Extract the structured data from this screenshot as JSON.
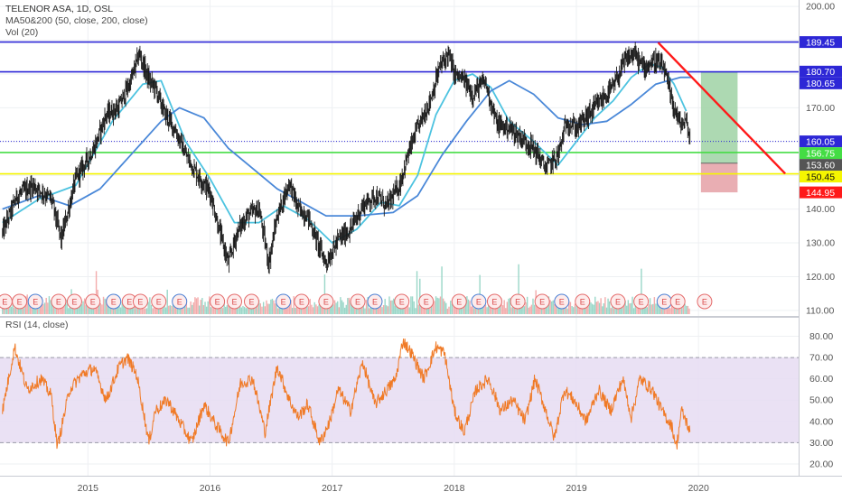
{
  "header": {
    "symbol_line": "TELENOR ASA, 1D, OSL",
    "ma_line": "MA50&200 (50, close, 200, close)",
    "vol_line": "Vol (20)",
    "rsi_line": "RSI (14, close)"
  },
  "chart_data": [
    {
      "type": "line",
      "panel": "price",
      "x_tick_labels": [
        "2015",
        "2016",
        "2017",
        "2018",
        "2019",
        "2020"
      ],
      "x_ticks_years": [
        2015,
        2016,
        2017,
        2018,
        2019,
        2020
      ],
      "x_range_years": [
        2014.28,
        2020.82
      ],
      "y_tick_labels": [
        "110.00",
        "120.00",
        "130.00",
        "140.00",
        "150.00",
        "160.00",
        "170.00",
        "180.00",
        "190.00",
        "200.00"
      ],
      "ylim": [
        109.7,
        201.1
      ],
      "close_approx": [
        [
          2014.3,
          133
        ],
        [
          2014.42,
          144
        ],
        [
          2014.55,
          147
        ],
        [
          2014.7,
          143
        ],
        [
          2014.78,
          131
        ],
        [
          2014.9,
          149
        ],
        [
          2015.05,
          158
        ],
        [
          2015.15,
          168
        ],
        [
          2015.25,
          170
        ],
        [
          2015.35,
          178
        ],
        [
          2015.42,
          186
        ],
        [
          2015.5,
          178
        ],
        [
          2015.55,
          176
        ],
        [
          2015.62,
          169
        ],
        [
          2015.72,
          163
        ],
        [
          2015.8,
          156
        ],
        [
          2015.9,
          150
        ],
        [
          2016.0,
          145
        ],
        [
          2016.08,
          133
        ],
        [
          2016.15,
          124
        ],
        [
          2016.22,
          133
        ],
        [
          2016.3,
          138
        ],
        [
          2016.4,
          140
        ],
        [
          2016.48,
          124
        ],
        [
          2016.55,
          138
        ],
        [
          2016.65,
          148
        ],
        [
          2016.72,
          140
        ],
        [
          2016.8,
          138
        ],
        [
          2016.88,
          130
        ],
        [
          2016.95,
          124
        ],
        [
          2017.05,
          131
        ],
        [
          2017.15,
          134
        ],
        [
          2017.25,
          141
        ],
        [
          2017.35,
          144
        ],
        [
          2017.45,
          141
        ],
        [
          2017.55,
          147
        ],
        [
          2017.62,
          156
        ],
        [
          2017.7,
          164
        ],
        [
          2017.8,
          172
        ],
        [
          2017.88,
          182
        ],
        [
          2017.95,
          186
        ],
        [
          2018.0,
          180
        ],
        [
          2018.08,
          178
        ],
        [
          2018.15,
          174
        ],
        [
          2018.25,
          178
        ],
        [
          2018.35,
          165
        ],
        [
          2018.45,
          164
        ],
        [
          2018.55,
          161
        ],
        [
          2018.65,
          158
        ],
        [
          2018.75,
          152
        ],
        [
          2018.85,
          156
        ],
        [
          2018.92,
          166
        ],
        [
          2019.0,
          164
        ],
        [
          2019.1,
          168
        ],
        [
          2019.2,
          172
        ],
        [
          2019.3,
          176
        ],
        [
          2019.4,
          184
        ],
        [
          2019.47,
          186
        ],
        [
          2019.55,
          182
        ],
        [
          2019.65,
          184
        ],
        [
          2019.72,
          181
        ],
        [
          2019.78,
          172
        ],
        [
          2019.85,
          165
        ],
        [
          2019.9,
          166
        ],
        [
          2019.93,
          160
        ]
      ],
      "series": [
        {
          "name": "MA50",
          "color": "#4dc3e0",
          "points": [
            [
              2014.3,
              136
            ],
            [
              2014.6,
              143
            ],
            [
              2014.9,
              147
            ],
            [
              2015.2,
              166
            ],
            [
              2015.45,
              177
            ],
            [
              2015.6,
              178
            ],
            [
              2015.8,
              160
            ],
            [
              2016.0,
              149
            ],
            [
              2016.2,
              136
            ],
            [
              2016.4,
              136
            ],
            [
              2016.6,
              141
            ],
            [
              2016.8,
              137
            ],
            [
              2017.0,
              130
            ],
            [
              2017.2,
              134
            ],
            [
              2017.4,
              142
            ],
            [
              2017.55,
              141
            ],
            [
              2017.7,
              150
            ],
            [
              2017.85,
              168
            ],
            [
              2018.0,
              178
            ],
            [
              2018.15,
              180
            ],
            [
              2018.3,
              176
            ],
            [
              2018.45,
              166
            ],
            [
              2018.65,
              160
            ],
            [
              2018.85,
              153
            ],
            [
              2019.0,
              160
            ],
            [
              2019.15,
              167
            ],
            [
              2019.3,
              172
            ],
            [
              2019.45,
              179
            ],
            [
              2019.6,
              183
            ],
            [
              2019.7,
              182
            ],
            [
              2019.8,
              177
            ],
            [
              2019.9,
              169
            ]
          ]
        },
        {
          "name": "MA200",
          "color": "#4a88d8",
          "points": [
            [
              2014.3,
              140
            ],
            [
              2014.6,
              144
            ],
            [
              2014.85,
              141
            ],
            [
              2015.1,
              146
            ],
            [
              2015.35,
              156
            ],
            [
              2015.6,
              166
            ],
            [
              2015.75,
              170
            ],
            [
              2015.95,
              167
            ],
            [
              2016.15,
              158
            ],
            [
              2016.35,
              152
            ],
            [
              2016.55,
              146
            ],
            [
              2016.75,
              142
            ],
            [
              2016.95,
              138
            ],
            [
              2017.2,
              138
            ],
            [
              2017.5,
              139
            ],
            [
              2017.7,
              144
            ],
            [
              2017.9,
              156
            ],
            [
              2018.1,
              166
            ],
            [
              2018.3,
              175
            ],
            [
              2018.45,
              178
            ],
            [
              2018.65,
              174
            ],
            [
              2018.85,
              167
            ],
            [
              2019.05,
              165
            ],
            [
              2019.25,
              166
            ],
            [
              2019.45,
              171
            ],
            [
              2019.65,
              177
            ],
            [
              2019.85,
              179
            ],
            [
              2019.95,
              179
            ]
          ]
        }
      ],
      "levels": [
        {
          "value": 189.45,
          "label": "189.45",
          "color": "#2d27d6",
          "style": "solid"
        },
        {
          "value": 180.65,
          "label": "180.65",
          "color": "#2d27d6",
          "style": "solid"
        },
        {
          "value": 180.7,
          "label": "180.70",
          "color": "#2d27d6",
          "style": "tag"
        },
        {
          "value": 160.05,
          "label": "160.05",
          "color": "#2d27d6",
          "style": "dotted"
        },
        {
          "value": 156.75,
          "label": "156.75",
          "color": "#44dd44",
          "style": "solid"
        },
        {
          "value": 153.6,
          "label": "153.60",
          "color": "#555555",
          "style": "tag"
        },
        {
          "value": 150.45,
          "label": "150.45",
          "color": "#f5f500",
          "style": "solid"
        },
        {
          "value": 144.95,
          "label": "144.95",
          "color": "#ff1a1a",
          "style": "tag"
        }
      ],
      "trendline": {
        "color": "#ff1a1a",
        "from": [
          2019.67,
          189.3
        ],
        "to": [
          2020.71,
          150.5
        ]
      },
      "position_box": {
        "x_range": [
          2020.02,
          2020.32
        ],
        "entry": 153.6,
        "target": 180.65,
        "stop": 144.95
      },
      "earnings_markers": {
        "label": "E",
        "years": [
          2014.32,
          2014.44,
          2014.57,
          2014.76,
          2014.89,
          2015.04,
          2015.21,
          2015.34,
          2015.43,
          2015.58,
          2015.75,
          2016.06,
          2016.2,
          2016.34,
          2016.6,
          2016.75,
          2016.95,
          2017.21,
          2017.35,
          2017.57,
          2017.77,
          2018.04,
          2018.2,
          2018.33,
          2018.52,
          2018.72,
          2018.88,
          2019.05,
          2019.34,
          2019.53,
          2019.72,
          2019.83,
          2020.05
        ]
      },
      "volume": {
        "name": "Vol (20)",
        "color_up": "#8fd3c2",
        "color_down": "#f2a3a3"
      }
    },
    {
      "type": "line",
      "panel": "rsi",
      "name": "RSI (14, close)",
      "color": "#f07a26",
      "band": [
        30,
        70
      ],
      "band_color": "#e6dcf2",
      "y_tick_labels": [
        "20.00",
        "30.00",
        "40.00",
        "50.00",
        "60.00",
        "70.00",
        "80.00"
      ],
      "ylim": [
        16.6,
        85.3
      ],
      "values_approx": [
        [
          2014.3,
          45
        ],
        [
          2014.4,
          75
        ],
        [
          2014.5,
          55
        ],
        [
          2014.62,
          60
        ],
        [
          2014.7,
          52
        ],
        [
          2014.75,
          28
        ],
        [
          2014.85,
          55
        ],
        [
          2014.95,
          62
        ],
        [
          2015.05,
          65
        ],
        [
          2015.15,
          50
        ],
        [
          2015.25,
          65
        ],
        [
          2015.32,
          70
        ],
        [
          2015.4,
          62
        ],
        [
          2015.5,
          30
        ],
        [
          2015.55,
          45
        ],
        [
          2015.65,
          50
        ],
        [
          2015.75,
          40
        ],
        [
          2015.85,
          30
        ],
        [
          2015.95,
          48
        ],
        [
          2016.05,
          38
        ],
        [
          2016.15,
          30
        ],
        [
          2016.25,
          58
        ],
        [
          2016.35,
          60
        ],
        [
          2016.45,
          35
        ],
        [
          2016.55,
          66
        ],
        [
          2016.65,
          50
        ],
        [
          2016.72,
          42
        ],
        [
          2016.8,
          48
        ],
        [
          2016.9,
          30
        ],
        [
          2016.98,
          40
        ],
        [
          2017.05,
          55
        ],
        [
          2017.15,
          45
        ],
        [
          2017.25,
          68
        ],
        [
          2017.35,
          48
        ],
        [
          2017.45,
          55
        ],
        [
          2017.52,
          60
        ],
        [
          2017.58,
          78
        ],
        [
          2017.65,
          72
        ],
        [
          2017.75,
          60
        ],
        [
          2017.85,
          75
        ],
        [
          2017.92,
          72
        ],
        [
          2018.0,
          45
        ],
        [
          2018.08,
          35
        ],
        [
          2018.18,
          55
        ],
        [
          2018.28,
          60
        ],
        [
          2018.38,
          45
        ],
        [
          2018.48,
          50
        ],
        [
          2018.58,
          40
        ],
        [
          2018.66,
          60
        ],
        [
          2018.75,
          45
        ],
        [
          2018.82,
          32
        ],
        [
          2018.9,
          55
        ],
        [
          2018.98,
          50
        ],
        [
          2019.08,
          40
        ],
        [
          2019.18,
          55
        ],
        [
          2019.28,
          45
        ],
        [
          2019.38,
          60
        ],
        [
          2019.45,
          42
        ],
        [
          2019.52,
          60
        ],
        [
          2019.62,
          55
        ],
        [
          2019.7,
          45
        ],
        [
          2019.78,
          38
        ],
        [
          2019.82,
          28
        ],
        [
          2019.86,
          45
        ],
        [
          2019.9,
          40
        ],
        [
          2019.93,
          35
        ]
      ]
    }
  ]
}
